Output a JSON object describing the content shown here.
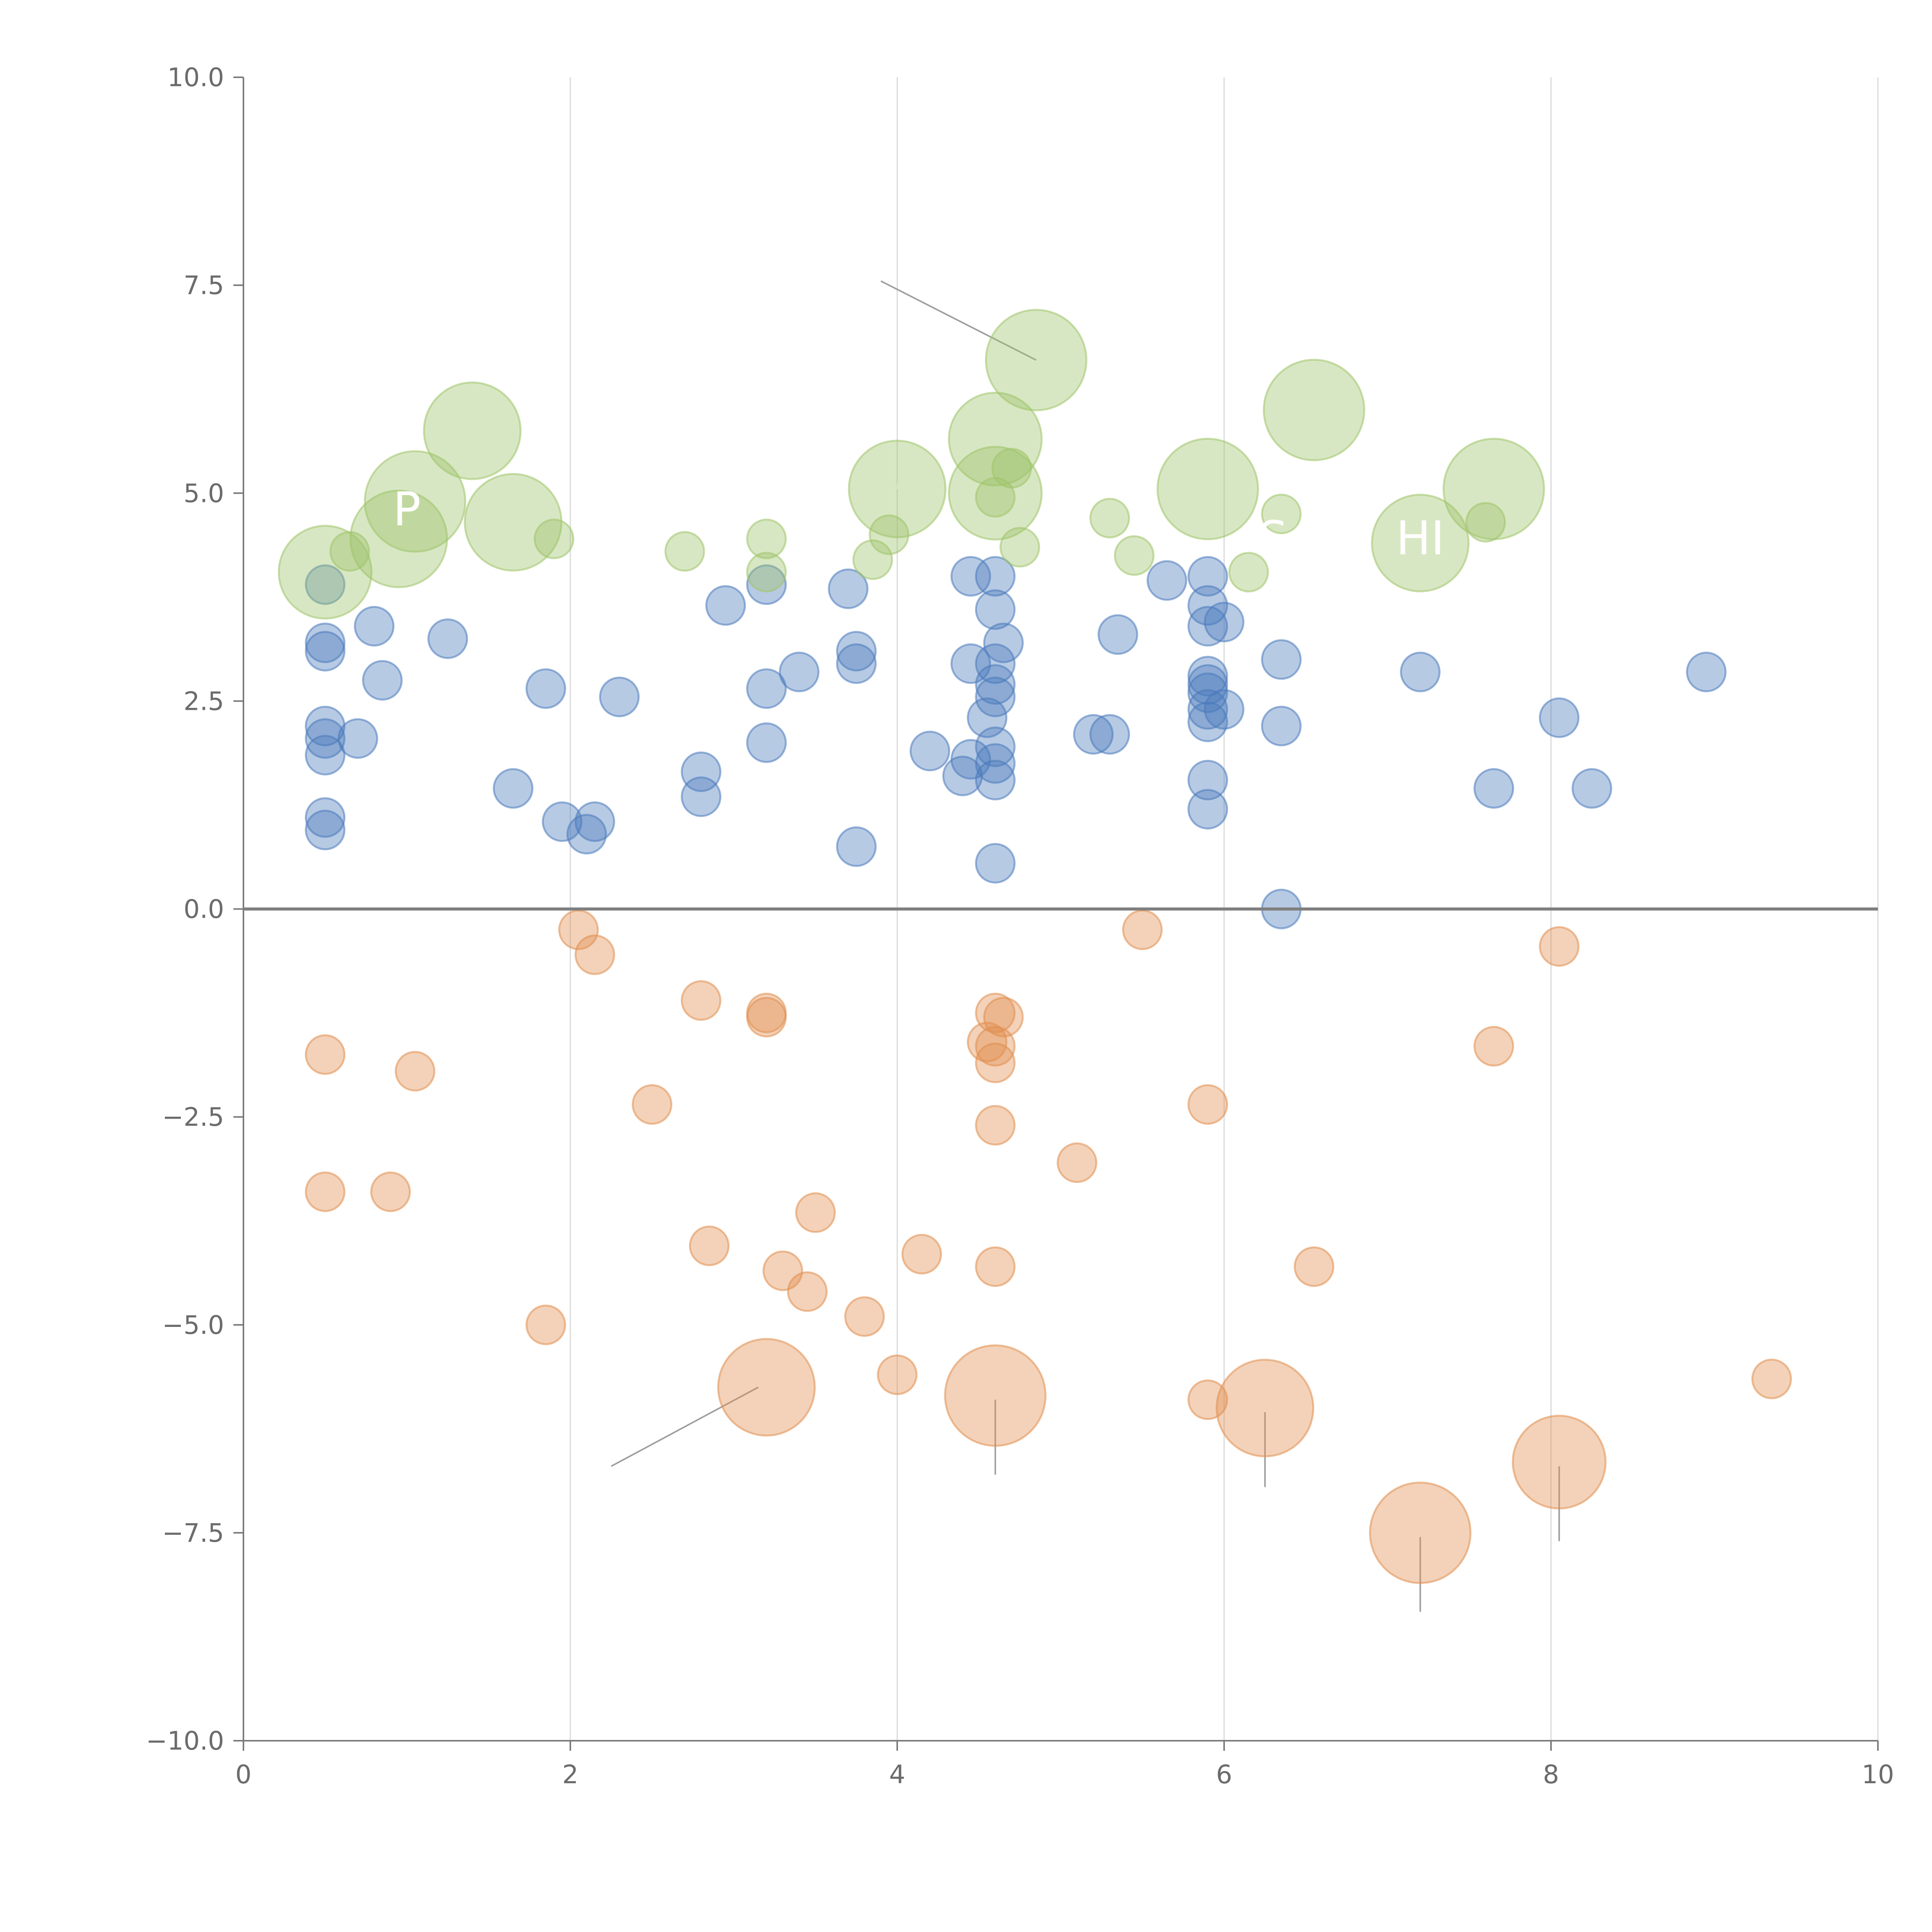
{
  "chart_data": {
    "type": "scatter",
    "variant": "bubble",
    "title": "",
    "xlabel": "",
    "ylabel": "",
    "xlim": [
      0,
      10
    ],
    "ylim": [
      -10,
      10
    ],
    "xticks": [
      0,
      2,
      4,
      6,
      8,
      10
    ],
    "xtick_labels": [
      "0",
      "2",
      "4",
      "6",
      "8",
      "10"
    ],
    "yticks": [
      -10,
      -7.5,
      -5,
      -2.5,
      0,
      2.5,
      5,
      7.5,
      10
    ],
    "ytick_labels": [
      "−10.0",
      "−7.5",
      "−5.0",
      "−2.5",
      "0.0",
      "2.5",
      "5.0",
      "7.5",
      "10.0"
    ],
    "grid": {
      "x": true,
      "y": false
    },
    "zero_line": true,
    "series": [
      {
        "name": "blue",
        "color": "#4a7abc",
        "opacity": 0.4,
        "points": [
          [
            0.5,
            3.9,
            1
          ],
          [
            0.5,
            3.2,
            1
          ],
          [
            0.5,
            3.1,
            1
          ],
          [
            0.5,
            2.2,
            1
          ],
          [
            0.5,
            2.05,
            1
          ],
          [
            0.5,
            1.85,
            1
          ],
          [
            0.5,
            1.1,
            1
          ],
          [
            0.5,
            0.95,
            1
          ],
          [
            0.7,
            2.05,
            1
          ],
          [
            0.8,
            3.4,
            1
          ],
          [
            0.85,
            2.75,
            1
          ],
          [
            1.25,
            3.25,
            1
          ],
          [
            1.65,
            1.45,
            1
          ],
          [
            1.85,
            2.65,
            1
          ],
          [
            1.95,
            1.05,
            1
          ],
          [
            2.1,
            0.9,
            1
          ],
          [
            2.15,
            1.05,
            1
          ],
          [
            2.3,
            2.55,
            1
          ],
          [
            2.8,
            1.65,
            1
          ],
          [
            2.8,
            1.35,
            1
          ],
          [
            2.95,
            3.65,
            1
          ],
          [
            3.2,
            3.9,
            1
          ],
          [
            3.2,
            2.65,
            1
          ],
          [
            3.2,
            2.0,
            1
          ],
          [
            3.4,
            2.85,
            1
          ],
          [
            3.7,
            3.85,
            1
          ],
          [
            3.75,
            3.1,
            1
          ],
          [
            3.75,
            2.95,
            1
          ],
          [
            3.75,
            0.75,
            1
          ],
          [
            4.2,
            1.9,
            1
          ],
          [
            4.4,
            1.6,
            1
          ],
          [
            4.45,
            4.0,
            1
          ],
          [
            4.45,
            2.95,
            1
          ],
          [
            4.45,
            1.8,
            1
          ],
          [
            4.55,
            2.3,
            1
          ],
          [
            4.6,
            4.0,
            1
          ],
          [
            4.6,
            3.6,
            1
          ],
          [
            4.6,
            2.95,
            1
          ],
          [
            4.6,
            2.7,
            1
          ],
          [
            4.6,
            2.55,
            1
          ],
          [
            4.6,
            1.95,
            1
          ],
          [
            4.6,
            1.75,
            1
          ],
          [
            4.6,
            1.55,
            1
          ],
          [
            4.6,
            0.55,
            1
          ],
          [
            4.65,
            3.2,
            1
          ],
          [
            5.2,
            2.1,
            1
          ],
          [
            5.3,
            2.1,
            1
          ],
          [
            5.35,
            3.3,
            1
          ],
          [
            5.65,
            3.95,
            1
          ],
          [
            5.9,
            4.0,
            1
          ],
          [
            5.9,
            3.65,
            1
          ],
          [
            5.9,
            3.4,
            1
          ],
          [
            5.9,
            2.8,
            1
          ],
          [
            5.9,
            2.7,
            1
          ],
          [
            5.9,
            2.6,
            1
          ],
          [
            5.9,
            2.4,
            1
          ],
          [
            5.9,
            2.25,
            1
          ],
          [
            5.9,
            1.55,
            1
          ],
          [
            5.9,
            1.2,
            1
          ],
          [
            6.0,
            3.45,
            1
          ],
          [
            6.0,
            2.4,
            1
          ],
          [
            6.35,
            3.0,
            1
          ],
          [
            6.35,
            2.2,
            1
          ],
          [
            6.35,
            0.0,
            1
          ],
          [
            7.2,
            2.85,
            1
          ],
          [
            7.65,
            1.45,
            1
          ],
          [
            8.05,
            2.3,
            1
          ],
          [
            8.25,
            1.45,
            1
          ],
          [
            8.95,
            2.85,
            1
          ]
        ]
      },
      {
        "name": "orange",
        "color": "#e08e4f",
        "opacity": 0.4,
        "points": [
          [
            0.5,
            -1.75,
            1
          ],
          [
            0.5,
            -3.4,
            1
          ],
          [
            0.9,
            -3.4,
            1
          ],
          [
            1.05,
            -1.95,
            1
          ],
          [
            1.85,
            -5.0,
            1
          ],
          [
            2.05,
            -0.25,
            1
          ],
          [
            2.15,
            -0.55,
            1
          ],
          [
            2.5,
            -2.35,
            1
          ],
          [
            2.8,
            -1.1,
            1
          ],
          [
            2.85,
            -4.05,
            1
          ],
          [
            3.2,
            -1.25,
            1
          ],
          [
            3.2,
            -1.3,
            1
          ],
          [
            3.3,
            -4.35,
            1
          ],
          [
            3.45,
            -4.6,
            1
          ],
          [
            3.5,
            -3.65,
            1
          ],
          [
            3.8,
            -4.9,
            1
          ],
          [
            4.0,
            -5.6,
            1
          ],
          [
            4.15,
            -4.15,
            1
          ],
          [
            4.55,
            -1.6,
            1
          ],
          [
            4.6,
            -1.25,
            1
          ],
          [
            4.6,
            -1.65,
            1
          ],
          [
            4.6,
            -1.85,
            1
          ],
          [
            4.6,
            -2.6,
            1
          ],
          [
            4.6,
            -4.3,
            1
          ],
          [
            4.65,
            -1.3,
            1
          ],
          [
            5.1,
            -3.05,
            1
          ],
          [
            5.5,
            -0.25,
            1
          ],
          [
            5.9,
            -2.35,
            1
          ],
          [
            5.9,
            -5.9,
            1
          ],
          [
            6.55,
            -4.3,
            1
          ],
          [
            7.65,
            -1.65,
            1
          ],
          [
            8.05,
            -0.45,
            1
          ],
          [
            9.35,
            -5.65,
            1
          ],
          [
            3.2,
            -5.75,
            2.5
          ],
          [
            4.6,
            -5.85,
            2.6
          ],
          [
            6.25,
            -6.0,
            2.5
          ],
          [
            7.2,
            -7.5,
            2.6
          ],
          [
            8.05,
            -6.65,
            2.4
          ]
        ]
      },
      {
        "name": "green",
        "color": "#9ec46a",
        "opacity": 0.4,
        "points": [
          [
            0.5,
            4.05,
            2.4
          ],
          [
            0.65,
            4.3,
            1
          ],
          [
            0.95,
            4.45,
            2.5
          ],
          [
            1.05,
            4.9,
            2.6
          ],
          [
            1.4,
            5.75,
            2.5
          ],
          [
            1.65,
            4.65,
            2.5
          ],
          [
            1.9,
            4.45,
            1
          ],
          [
            2.7,
            4.3,
            1
          ],
          [
            3.2,
            4.45,
            1
          ],
          [
            3.2,
            4.05,
            1
          ],
          [
            3.85,
            4.2,
            1
          ],
          [
            3.95,
            4.5,
            1
          ],
          [
            4.0,
            5.05,
            2.5
          ],
          [
            4.6,
            5.65,
            2.4
          ],
          [
            4.6,
            5.0,
            2.4
          ],
          [
            4.6,
            4.95,
            1
          ],
          [
            4.7,
            5.3,
            1
          ],
          [
            4.75,
            4.35,
            1
          ],
          [
            4.85,
            6.6,
            2.6
          ],
          [
            5.3,
            4.7,
            1
          ],
          [
            5.45,
            4.25,
            1
          ],
          [
            5.9,
            5.05,
            2.6
          ],
          [
            6.15,
            4.05,
            1
          ],
          [
            6.35,
            4.75,
            1
          ],
          [
            6.55,
            6.0,
            2.6
          ],
          [
            7.2,
            4.4,
            2.5
          ],
          [
            7.6,
            4.65,
            1
          ],
          [
            7.65,
            5.05,
            2.6
          ]
        ]
      }
    ],
    "annotations": [
      {
        "text": "P",
        "x": 1.0,
        "y": 4.8
      },
      {
        "text": "S",
        "x": 6.3,
        "y": 4.45
      },
      {
        "text": "HI",
        "x": 7.2,
        "y": 4.45
      }
    ],
    "leader_lines": [
      {
        "color": "#9e9e9e",
        "from": [
          3.9,
          7.55
        ],
        "to": [
          4.85,
          6.6
        ]
      },
      {
        "color": "#9e9e9e",
        "from": [
          2.25,
          -6.7
        ],
        "to": [
          3.15,
          -5.75
        ]
      },
      {
        "color": "#9e9e9e",
        "from": [
          4.6,
          -5.9
        ],
        "to": [
          4.6,
          -6.8
        ]
      },
      {
        "color": "#9e9e9e",
        "from": [
          6.25,
          -6.05
        ],
        "to": [
          6.25,
          -6.95
        ]
      },
      {
        "color": "#9e9e9e",
        "from": [
          7.2,
          -7.55
        ],
        "to": [
          7.2,
          -8.45
        ]
      },
      {
        "color": "#9e9e9e",
        "from": [
          8.05,
          -6.7
        ],
        "to": [
          8.05,
          -7.6
        ]
      },
      {
        "color": "#ffffff",
        "from": [
          1.4,
          5.75
        ],
        "to": [
          1.55,
          5.85
        ]
      },
      {
        "color": "#ffffff",
        "from": [
          1.65,
          4.65
        ],
        "to": [
          1.8,
          4.7
        ]
      },
      {
        "color": "#ffffff",
        "from": [
          0.5,
          4.0
        ],
        "to": [
          0.65,
          3.65
        ]
      },
      {
        "color": "#ffffff",
        "from": [
          0.85,
          2.75
        ],
        "to": [
          0.7,
          3.1
        ]
      },
      {
        "color": "#ffffff",
        "from": [
          4.0,
          5.05
        ],
        "to": [
          4.03,
          5.4
        ]
      },
      {
        "color": "#ffffff",
        "from": [
          4.6,
          5.65
        ],
        "to": [
          4.8,
          5.7
        ]
      },
      {
        "color": "#ffffff",
        "from": [
          4.6,
          5.0
        ],
        "to": [
          4.75,
          4.45
        ]
      },
      {
        "color": "#ffffff",
        "from": [
          7.65,
          5.05
        ],
        "to": [
          7.85,
          5.2
        ]
      },
      {
        "color": "#ffffff",
        "from": [
          7.2,
          4.4
        ],
        "to": [
          7.45,
          4.4
        ]
      }
    ]
  }
}
